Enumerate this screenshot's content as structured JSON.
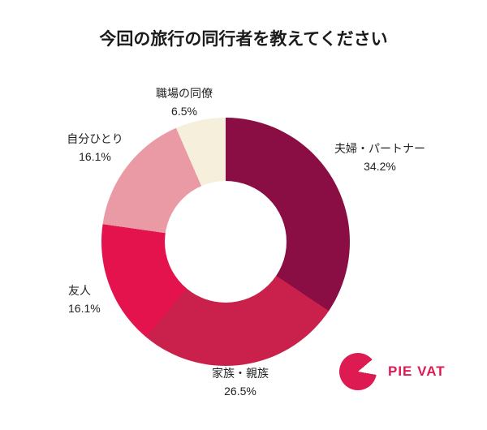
{
  "chart_data": {
    "type": "pie",
    "donut": true,
    "inner_radius_ratio": 0.49,
    "start_angle_deg": 0,
    "direction": "clockwise",
    "title": "今回の旅行の同行者を教えてください",
    "legend_position": "labels-around-chart",
    "slices": [
      {
        "label": "夫婦・パートナー",
        "value": 34.2,
        "display": "34.2%",
        "color": "#8a0e44"
      },
      {
        "label": "家族・親族",
        "value": 26.5,
        "display": "26.5%",
        "color": "#c9204c"
      },
      {
        "label": "友人",
        "value": 16.1,
        "display": "16.1%",
        "color": "#e4134e"
      },
      {
        "label": "自分ひとり",
        "value": 16.1,
        "display": "16.1%",
        "color": "#e99aa5"
      },
      {
        "label": "職場の同僚",
        "value": 6.5,
        "display": "6.5%",
        "color": "#f6efdc"
      }
    ]
  },
  "logo": {
    "text": "PIE VAT",
    "color": "#dd1a52",
    "icon": "pie-icon"
  }
}
